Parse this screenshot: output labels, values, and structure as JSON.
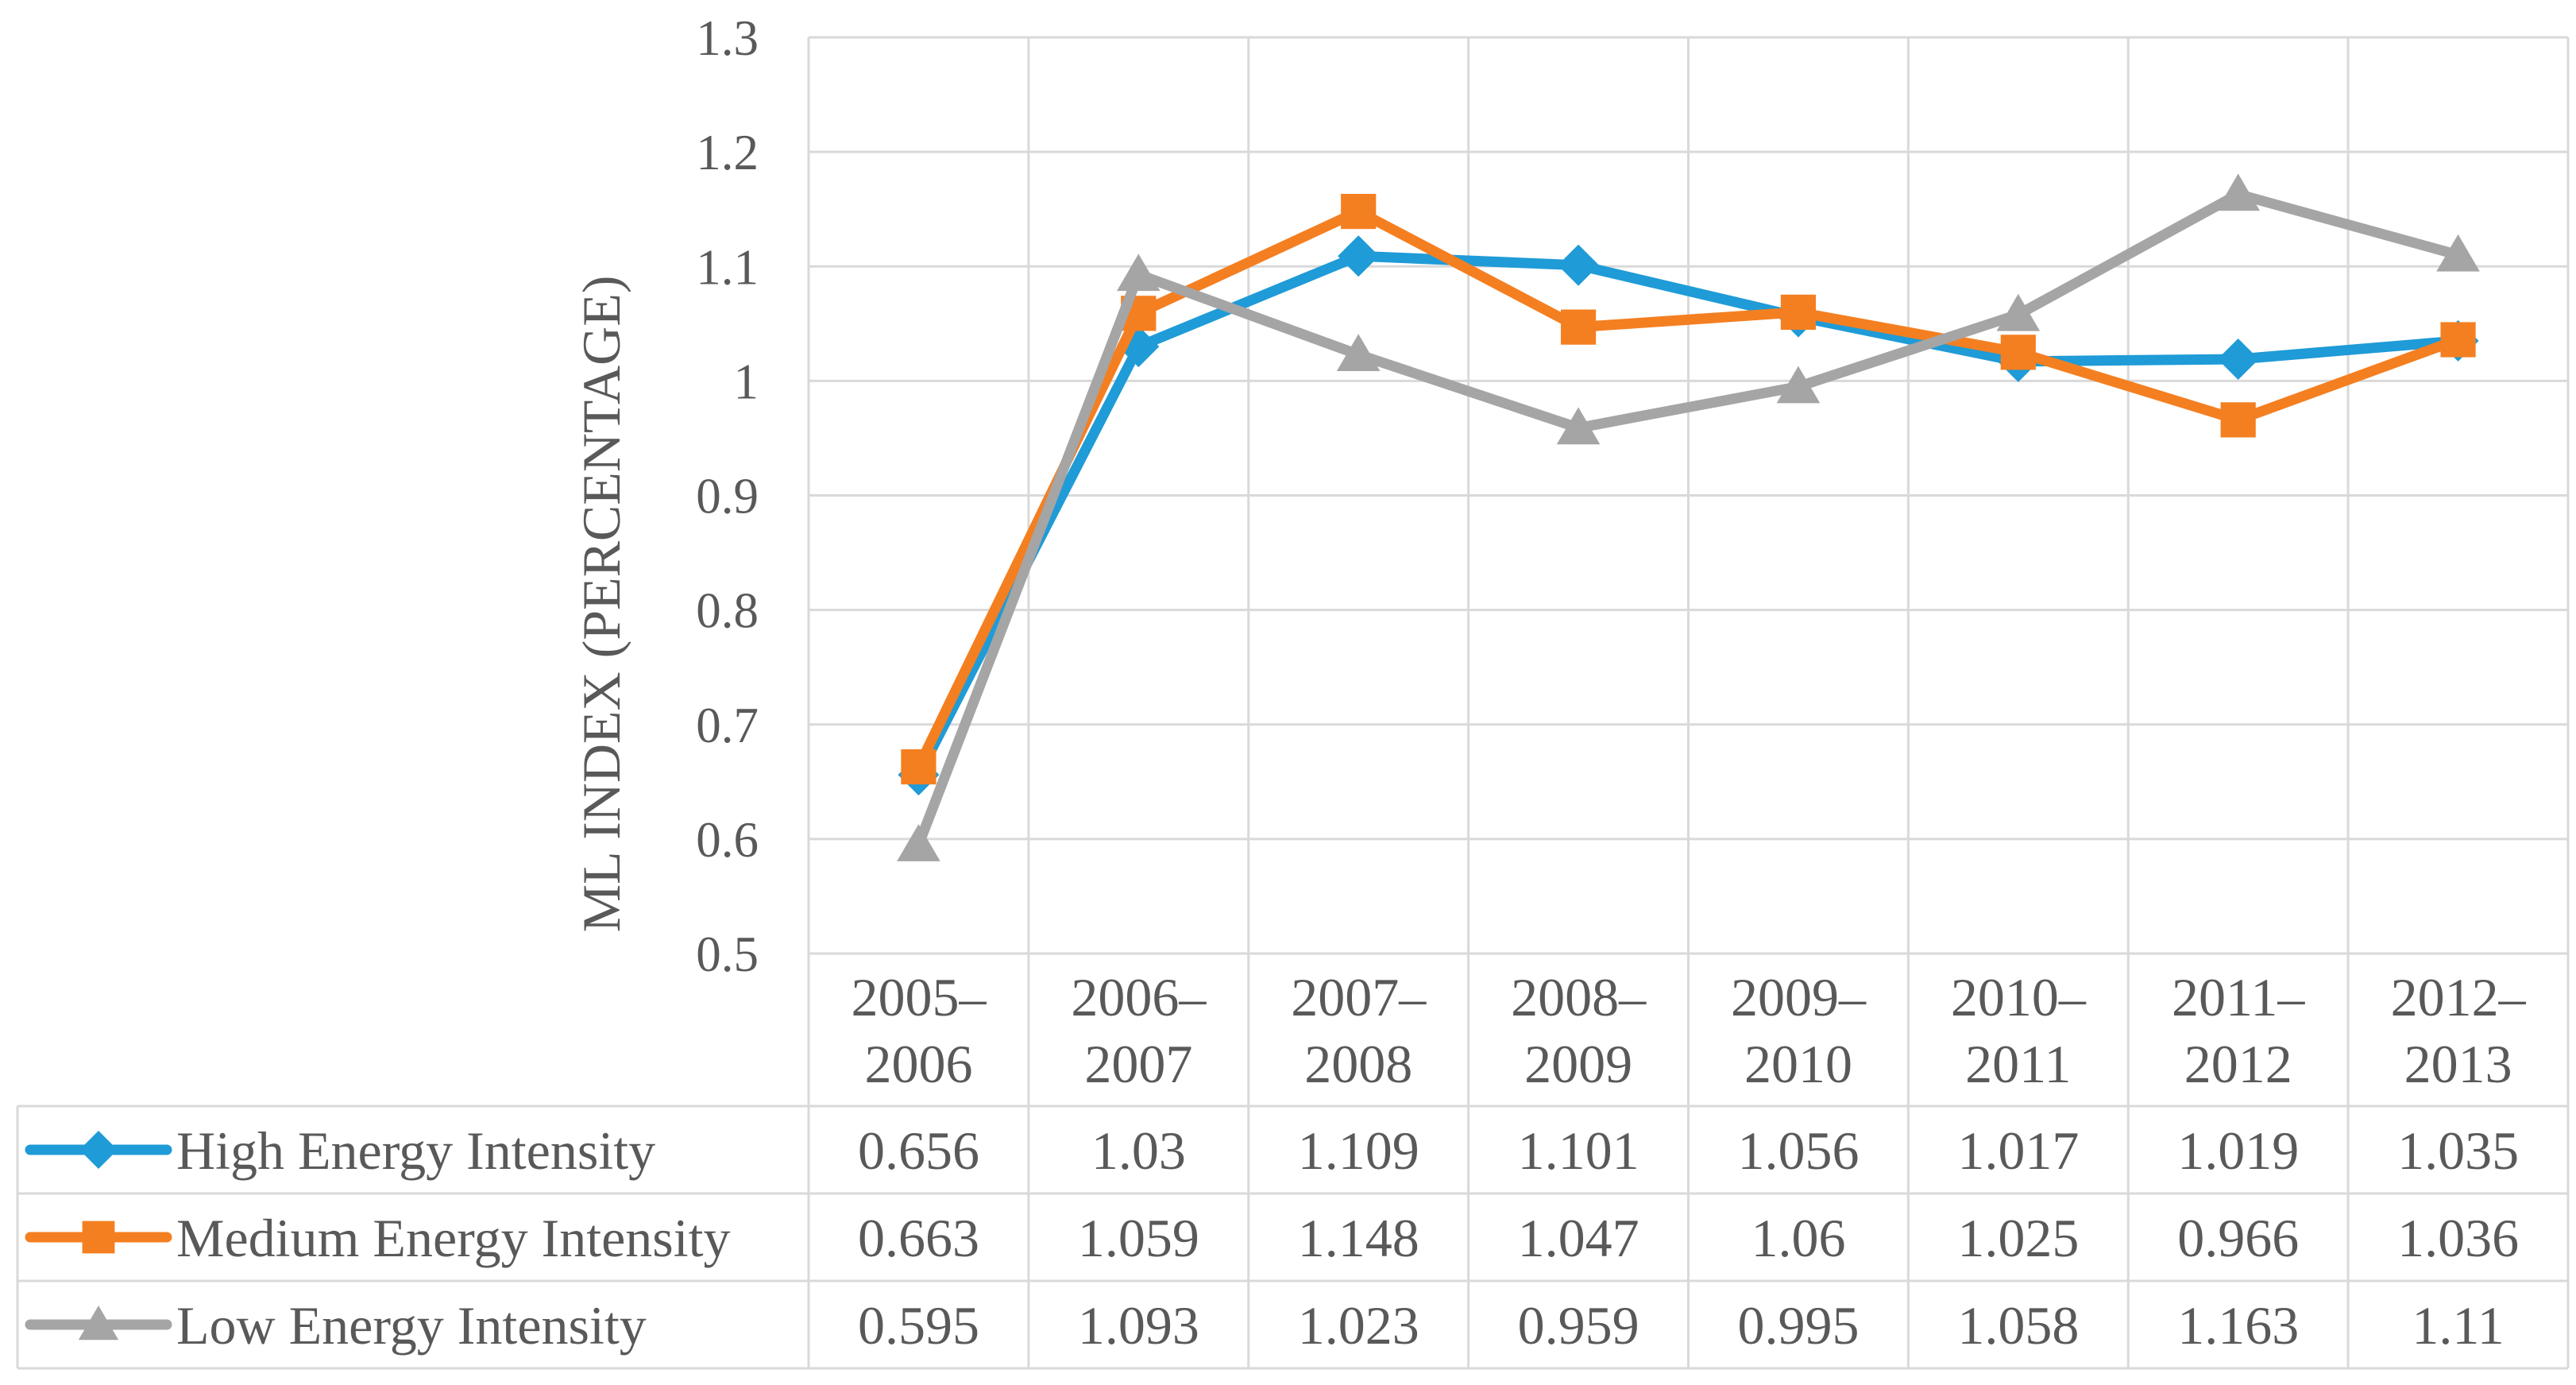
{
  "chart_data": {
    "type": "line",
    "title": "",
    "xlabel": "",
    "ylabel": "ML INDEX (PERCENTAGE)",
    "ylim": [
      0.5,
      1.3
    ],
    "ytick_step": 0.1,
    "ytick_labels": [
      "0.5",
      "0.6",
      "0.7",
      "0.8",
      "0.9",
      "1",
      "1.1",
      "1.2",
      "1.3"
    ],
    "grid": true,
    "legend": "data-table-bottom",
    "categories": [
      [
        "2005–",
        "2006"
      ],
      [
        "2006–",
        "2007"
      ],
      [
        "2007–",
        "2008"
      ],
      [
        "2008–",
        "2009"
      ],
      [
        "2009–",
        "2010"
      ],
      [
        "2010–",
        "2011"
      ],
      [
        "2011–",
        "2012"
      ],
      [
        "2012–",
        "2013"
      ]
    ],
    "series": [
      {
        "name": "High Energy Intensity",
        "marker": "diamond",
        "color": "#1F9BD7",
        "values": [
          0.656,
          1.03,
          1.109,
          1.101,
          1.056,
          1.017,
          1.019,
          1.035
        ],
        "labels": [
          "0.656",
          "1.03",
          "1.109",
          "1.101",
          "1.056",
          "1.017",
          "1.019",
          "1.035"
        ]
      },
      {
        "name": "Medium Energy Intensity",
        "marker": "square",
        "color": "#F47F21",
        "values": [
          0.663,
          1.059,
          1.148,
          1.047,
          1.06,
          1.025,
          0.966,
          1.036
        ],
        "labels": [
          "0.663",
          "1.059",
          "1.148",
          "1.047",
          "1.06",
          "1.025",
          "0.966",
          "1.036"
        ]
      },
      {
        "name": "Low Energy Intensity",
        "marker": "triangle",
        "color": "#A5A5A5",
        "values": [
          0.595,
          1.093,
          1.023,
          0.959,
          0.995,
          1.058,
          1.163,
          1.11
        ],
        "labels": [
          "0.595",
          "1.093",
          "1.023",
          "0.959",
          "0.995",
          "1.058",
          "1.163",
          "1.11"
        ]
      }
    ]
  },
  "colors": {
    "grid": "#D9D9D9",
    "text": "#595959"
  }
}
